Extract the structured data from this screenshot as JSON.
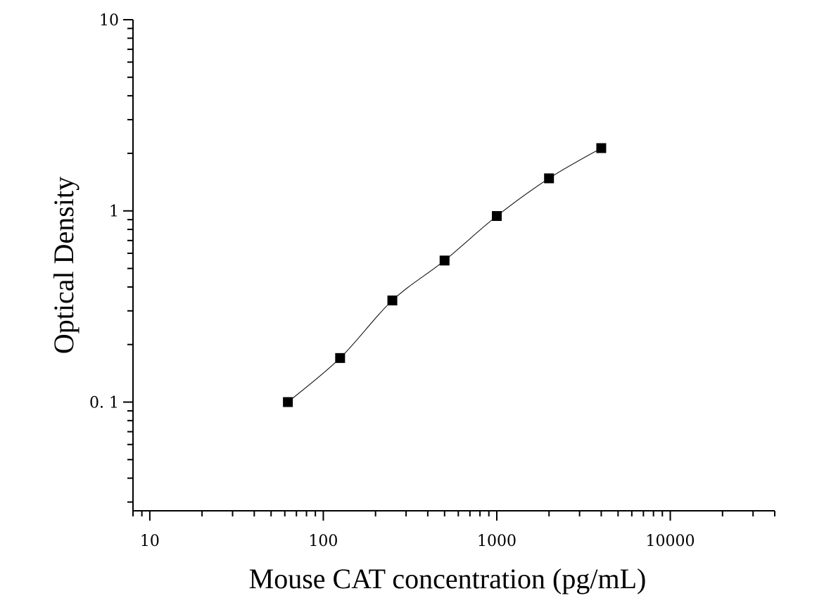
{
  "chart_data": {
    "type": "scatter",
    "title": "",
    "xlabel": "Mouse CAT concentration (pg/mL)",
    "ylabel": "Optical Density",
    "x_scale": "log",
    "y_scale": "log",
    "xlim": [
      8,
      40000
    ],
    "ylim": [
      0.027,
      10
    ],
    "x_ticks": [
      {
        "value": 10,
        "label": "10"
      },
      {
        "value": 100,
        "label": "100"
      },
      {
        "value": 1000,
        "label": "1000"
      },
      {
        "value": 10000,
        "label": "10000"
      }
    ],
    "y_ticks": [
      {
        "value": 0.1,
        "label": "0. 1"
      },
      {
        "value": 1,
        "label": "1"
      },
      {
        "value": 10,
        "label": "10"
      }
    ],
    "grid": false,
    "legend": "none",
    "series": [
      {
        "marker": "square",
        "color": "#000000",
        "fit_line": true,
        "points": [
          {
            "x": 62.5,
            "y": 0.1
          },
          {
            "x": 125,
            "y": 0.17
          },
          {
            "x": 250,
            "y": 0.34
          },
          {
            "x": 500,
            "y": 0.55
          },
          {
            "x": 1000,
            "y": 0.94
          },
          {
            "x": 2000,
            "y": 1.48
          },
          {
            "x": 4000,
            "y": 2.13
          }
        ]
      }
    ]
  }
}
